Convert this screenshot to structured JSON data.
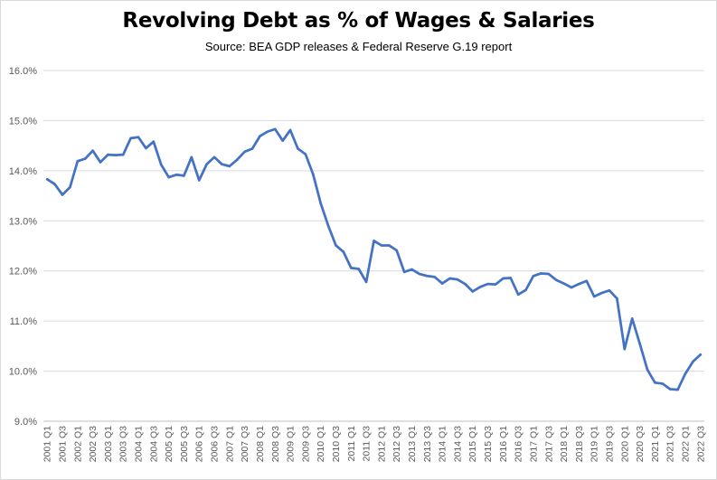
{
  "chart_data": {
    "type": "line",
    "title": "Revolving Debt as % of Wages & Salaries",
    "subtitle": "Source: BEA GDP releases & Federal Reserve G.19 report",
    "xlabel": "",
    "ylabel": "",
    "ylim": [
      9.0,
      16.0
    ],
    "yticks": [
      "9.0%",
      "10.0%",
      "11.0%",
      "12.0%",
      "13.0%",
      "14.0%",
      "15.0%",
      "16.0%"
    ],
    "grid": true,
    "legend": "none",
    "color": "#4472c4",
    "x": [
      "2001 Q1",
      "2001 Q2",
      "2001 Q3",
      "2001 Q4",
      "2002 Q1",
      "2002 Q2",
      "2002 Q3",
      "2002 Q4",
      "2003 Q1",
      "2003 Q2",
      "2003 Q3",
      "2003 Q4",
      "2004 Q1",
      "2004 Q2",
      "2004 Q3",
      "2004 Q4",
      "2005 Q1",
      "2005 Q2",
      "2005 Q3",
      "2005 Q4",
      "2006 Q1",
      "2006 Q2",
      "2006 Q3",
      "2006 Q4",
      "2007 Q1",
      "2007 Q2",
      "2007 Q3",
      "2007 Q4",
      "2008 Q1",
      "2008 Q2",
      "2008 Q3",
      "2008 Q4",
      "2009 Q1",
      "2009 Q2",
      "2009 Q3",
      "2009 Q4",
      "2010 Q1",
      "2010 Q2",
      "2010 Q3",
      "2010 Q4",
      "2011 Q1",
      "2011 Q2",
      "2011 Q3",
      "2011 Q4",
      "2012 Q1",
      "2012 Q2",
      "2012 Q3",
      "2012 Q4",
      "2013 Q1",
      "2013 Q2",
      "2013 Q3",
      "2013 Q4",
      "2014 Q1",
      "2014 Q2",
      "2014 Q3",
      "2014 Q4",
      "2015 Q1",
      "2015 Q2",
      "2015 Q3",
      "2015 Q4",
      "2016 Q1",
      "2016 Q2",
      "2016 Q3",
      "2016 Q4",
      "2017 Q1",
      "2017 Q2",
      "2017 Q3",
      "2017 Q4",
      "2018 Q1",
      "2018 Q2",
      "2018 Q3",
      "2018 Q4",
      "2019 Q1",
      "2019 Q2",
      "2019 Q3",
      "2019 Q4",
      "2020 Q1",
      "2020 Q2",
      "2020 Q3",
      "2020 Q4",
      "2021 Q1",
      "2021 Q2",
      "2021 Q3",
      "2021 Q4",
      "2022 Q1",
      "2022 Q2",
      "2022 Q3"
    ],
    "x_tick_labels": [
      "2001 Q1",
      "2001 Q3",
      "2002 Q1",
      "2002 Q3",
      "2003 Q1",
      "2003 Q3",
      "2004 Q1",
      "2004 Q3",
      "2005 Q1",
      "2005 Q3",
      "2006 Q1",
      "2006 Q3",
      "2007 Q1",
      "2007 Q3",
      "2008 Q1",
      "2008 Q3",
      "2009 Q1",
      "2009 Q3",
      "2010 Q1",
      "2010 Q3",
      "2011 Q1",
      "2011 Q3",
      "2012 Q1",
      "2012 Q3",
      "2013 Q1",
      "2013 Q3",
      "2014 Q1",
      "2014 Q3",
      "2015 Q1",
      "2015 Q3",
      "2016 Q1",
      "2016 Q3",
      "2017 Q1",
      "2017 Q3",
      "2018 Q1",
      "2018 Q3",
      "2019 Q1",
      "2019 Q3",
      "2020 Q1",
      "2020 Q3",
      "2021 Q1",
      "2021 Q3",
      "2022 Q1",
      "2022 Q3"
    ],
    "series": [
      {
        "values": [
          13.83,
          13.73,
          13.52,
          13.67,
          14.19,
          14.24,
          14.4,
          14.17,
          14.32,
          14.31,
          14.32,
          14.65,
          14.67,
          14.45,
          14.58,
          14.12,
          13.87,
          13.92,
          13.9,
          14.27,
          13.81,
          14.13,
          14.27,
          14.13,
          14.09,
          14.22,
          14.38,
          14.44,
          14.69,
          14.78,
          14.83,
          14.6,
          14.81,
          14.44,
          14.33,
          13.93,
          13.35,
          12.9,
          12.51,
          12.38,
          12.06,
          12.04,
          11.78,
          12.6,
          12.51,
          12.51,
          12.41,
          11.98,
          12.03,
          11.94,
          11.9,
          11.88,
          11.75,
          11.85,
          11.83,
          11.74,
          11.59,
          11.68,
          11.74,
          11.73,
          11.85,
          11.86,
          11.53,
          11.62,
          11.9,
          11.95,
          11.94,
          11.82,
          11.75,
          11.67,
          11.74,
          11.8,
          11.49,
          11.56,
          11.61,
          11.45,
          10.44,
          11.05,
          10.55,
          10.03,
          9.77,
          9.75,
          9.64,
          9.63,
          9.95,
          10.19,
          10.33
        ]
      }
    ]
  }
}
